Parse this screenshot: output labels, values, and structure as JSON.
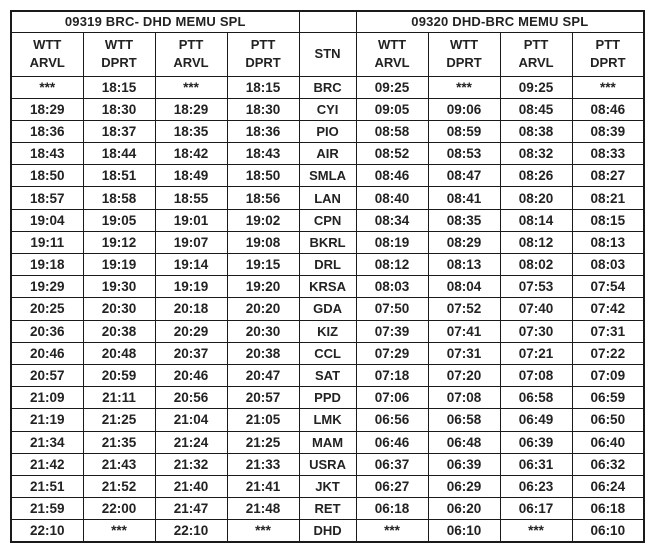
{
  "colors": {
    "background": "#ffffff",
    "border": "#1a1a1a",
    "text": "#222222"
  },
  "table": {
    "title_left": "09319 BRC- DHD MEMU SPL",
    "title_right": "09320 DHD-BRC MEMU SPL",
    "headers": {
      "stn": "STN",
      "left": [
        {
          "l1": "WTT",
          "l2": "ARVL"
        },
        {
          "l1": "WTT",
          "l2": "DPRT"
        },
        {
          "l1": "PTT",
          "l2": "ARVL"
        },
        {
          "l1": "PTT",
          "l2": "DPRT"
        }
      ],
      "right": [
        {
          "l1": "WTT",
          "l2": "ARVL"
        },
        {
          "l1": "WTT",
          "l2": "DPRT"
        },
        {
          "l1": "PTT",
          "l2": "ARVL"
        },
        {
          "l1": "PTT",
          "l2": "DPRT"
        }
      ]
    },
    "rows": [
      {
        "left": [
          "***",
          "18:15",
          "***",
          "18:15"
        ],
        "stn": "BRC",
        "right": [
          "09:25",
          "***",
          "09:25",
          "***"
        ]
      },
      {
        "left": [
          "18:29",
          "18:30",
          "18:29",
          "18:30"
        ],
        "stn": "CYI",
        "right": [
          "09:05",
          "09:06",
          "08:45",
          "08:46"
        ]
      },
      {
        "left": [
          "18:36",
          "18:37",
          "18:35",
          "18:36"
        ],
        "stn": "PIO",
        "right": [
          "08:58",
          "08:59",
          "08:38",
          "08:39"
        ]
      },
      {
        "left": [
          "18:43",
          "18:44",
          "18:42",
          "18:43"
        ],
        "stn": "AIR",
        "right": [
          "08:52",
          "08:53",
          "08:32",
          "08:33"
        ]
      },
      {
        "left": [
          "18:50",
          "18:51",
          "18:49",
          "18:50"
        ],
        "stn": "SMLA",
        "right": [
          "08:46",
          "08:47",
          "08:26",
          "08:27"
        ]
      },
      {
        "left": [
          "18:57",
          "18:58",
          "18:55",
          "18:56"
        ],
        "stn": "LAN",
        "right": [
          "08:40",
          "08:41",
          "08:20",
          "08:21"
        ]
      },
      {
        "left": [
          "19:04",
          "19:05",
          "19:01",
          "19:02"
        ],
        "stn": "CPN",
        "right": [
          "08:34",
          "08:35",
          "08:14",
          "08:15"
        ]
      },
      {
        "left": [
          "19:11",
          "19:12",
          "19:07",
          "19:08"
        ],
        "stn": "BKRL",
        "right": [
          "08:19",
          "08:29",
          "08:12",
          "08:13"
        ]
      },
      {
        "left": [
          "19:18",
          "19:19",
          "19:14",
          "19:15"
        ],
        "stn": "DRL",
        "right": [
          "08:12",
          "08:13",
          "08:02",
          "08:03"
        ]
      },
      {
        "left": [
          "19:29",
          "19:30",
          "19:19",
          "19:20"
        ],
        "stn": "KRSA",
        "right": [
          "08:03",
          "08:04",
          "07:53",
          "07:54"
        ]
      },
      {
        "left": [
          "20:25",
          "20:30",
          "20:18",
          "20:20"
        ],
        "stn": "GDA",
        "right": [
          "07:50",
          "07:52",
          "07:40",
          "07:42"
        ]
      },
      {
        "left": [
          "20:36",
          "20:38",
          "20:29",
          "20:30"
        ],
        "stn": "KIZ",
        "right": [
          "07:39",
          "07:41",
          "07:30",
          "07:31"
        ]
      },
      {
        "left": [
          "20:46",
          "20:48",
          "20:37",
          "20:38"
        ],
        "stn": "CCL",
        "right": [
          "07:29",
          "07:31",
          "07:21",
          "07:22"
        ]
      },
      {
        "left": [
          "20:57",
          "20:59",
          "20:46",
          "20:47"
        ],
        "stn": "SAT",
        "right": [
          "07:18",
          "07:20",
          "07:08",
          "07:09"
        ]
      },
      {
        "left": [
          "21:09",
          "21:11",
          "20:56",
          "20:57"
        ],
        "stn": "PPD",
        "right": [
          "07:06",
          "07:08",
          "06:58",
          "06:59"
        ]
      },
      {
        "left": [
          "21:19",
          "21:25",
          "21:04",
          "21:05"
        ],
        "stn": "LMK",
        "right": [
          "06:56",
          "06:58",
          "06:49",
          "06:50"
        ]
      },
      {
        "left": [
          "21:34",
          "21:35",
          "21:24",
          "21:25"
        ],
        "stn": "MAM",
        "right": [
          "06:46",
          "06:48",
          "06:39",
          "06:40"
        ]
      },
      {
        "left": [
          "21:42",
          "21:43",
          "21:32",
          "21:33"
        ],
        "stn": "USRA",
        "right": [
          "06:37",
          "06:39",
          "06:31",
          "06:32"
        ]
      },
      {
        "left": [
          "21:51",
          "21:52",
          "21:40",
          "21:41"
        ],
        "stn": "JKT",
        "right": [
          "06:27",
          "06:29",
          "06:23",
          "06:24"
        ]
      },
      {
        "left": [
          "21:59",
          "22:00",
          "21:47",
          "21:48"
        ],
        "stn": "RET",
        "right": [
          "06:18",
          "06:20",
          "06:17",
          "06:18"
        ]
      },
      {
        "left": [
          "22:10",
          "***",
          "22:10",
          "***"
        ],
        "stn": "DHD",
        "right": [
          "***",
          "06:10",
          "***",
          "06:10"
        ]
      }
    ]
  }
}
